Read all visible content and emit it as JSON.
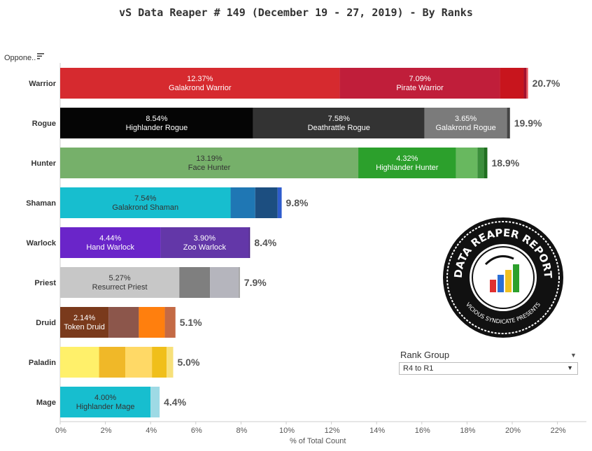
{
  "title": "vS Data Reaper #  149 (December 19 - 27, 2019) - By Ranks",
  "filter": {
    "label": "Oppone..",
    "sort_icon": "sort-icon"
  },
  "rank_group": {
    "label": "Rank Group",
    "value": "R4 to R1"
  },
  "logo": {
    "text_top": "DATA REAPER REPORT",
    "text_bottom": "VICIOUS SYNDICATE PRESENTS"
  },
  "chart_data": {
    "type": "bar",
    "orientation": "horizontal",
    "stacked": true,
    "title": "vS Data Reaper #  149 (December 19 - 27, 2019) - By Ranks",
    "xlabel": "% of Total Count",
    "xlim": [
      0,
      23
    ],
    "xticks": [
      "0%",
      "2%",
      "4%",
      "6%",
      "8%",
      "10%",
      "12%",
      "14%",
      "16%",
      "18%",
      "20%",
      "22%"
    ],
    "categories": [
      "Warrior",
      "Rogue",
      "Hunter",
      "Shaman",
      "Warlock",
      "Priest",
      "Druid",
      "Paladin",
      "Mage"
    ],
    "totals": [
      "20.7%",
      "19.9%",
      "18.9%",
      "9.8%",
      "8.4%",
      "7.9%",
      "5.1%",
      "5.0%",
      "4.4%"
    ],
    "bars": [
      {
        "class": "Warrior",
        "segments": [
          {
            "value": 12.37,
            "label": "12.37%",
            "name": "Galakrond Warrior",
            "color": "#d62a2f"
          },
          {
            "value": 7.09,
            "label": "7.09%",
            "name": "Pirate Warrior",
            "color": "#c01e3a"
          },
          {
            "value": 1.05,
            "color": "#c8151d"
          },
          {
            "value": 0.12,
            "color": "#a3112e"
          },
          {
            "value": 0.07,
            "color": "#e8575c"
          }
        ]
      },
      {
        "class": "Rogue",
        "segments": [
          {
            "value": 8.54,
            "label": "8.54%",
            "name": "Highlander Rogue",
            "color": "#050505"
          },
          {
            "value": 7.58,
            "label": "7.58%",
            "name": "Deathrattle Rogue",
            "color": "#333333"
          },
          {
            "value": 3.65,
            "label": "3.65%",
            "name": "Galakrond Rogue",
            "color": "#7b7b7b"
          },
          {
            "value": 0.13,
            "color": "#444444"
          }
        ]
      },
      {
        "class": "Hunter",
        "segments": [
          {
            "value": 13.19,
            "label": "13.19%",
            "name": "Face Hunter",
            "color": "#76b06a",
            "dark": true
          },
          {
            "value": 4.32,
            "label": "4.32%",
            "name": "Highlander Hunter",
            "color": "#2ca02c"
          },
          {
            "value": 0.95,
            "color": "#68b85f"
          },
          {
            "value": 0.28,
            "color": "#3b8f3b"
          },
          {
            "value": 0.16,
            "color": "#1f6f1f"
          }
        ]
      },
      {
        "class": "Shaman",
        "segments": [
          {
            "value": 7.54,
            "label": "7.54%",
            "name": "Galakrond Shaman",
            "color": "#17becf",
            "dark": true
          },
          {
            "value": 1.09,
            "color": "#1f77b4"
          },
          {
            "value": 0.99,
            "color": "#1c4e80"
          },
          {
            "value": 0.18,
            "color": "#2e5ccc"
          }
        ]
      },
      {
        "class": "Warlock",
        "segments": [
          {
            "value": 4.44,
            "label": "4.44%",
            "name": "Hand Warlock",
            "color": "#6a25c9"
          },
          {
            "value": 3.9,
            "label": "3.90%",
            "name": "Zoo Warlock",
            "color": "#6337a8"
          },
          {
            "value": 0.06,
            "color": "#4a2088"
          }
        ]
      },
      {
        "class": "Priest",
        "segments": [
          {
            "value": 5.27,
            "label": "5.27%",
            "name": "Resurrect Priest",
            "color": "#c7c7c7",
            "dark": true
          },
          {
            "value": 1.36,
            "color": "#7f7f7f"
          },
          {
            "value": 1.27,
            "color": "#b5b5bd"
          },
          {
            "value": 0.05,
            "color": "#999999"
          }
        ]
      },
      {
        "class": "Druid",
        "segments": [
          {
            "value": 2.14,
            "label": "2.14%",
            "name": "Token Druid",
            "color": "#7a3a1c"
          },
          {
            "value": 1.34,
            "color": "#8c564b"
          },
          {
            "value": 1.15,
            "color": "#ff7f0e"
          },
          {
            "value": 0.47,
            "color": "#c46a45"
          }
        ]
      },
      {
        "class": "Paladin",
        "segments": [
          {
            "value": 1.72,
            "color": "#fff06a"
          },
          {
            "value": 1.16,
            "color": "#f0b828"
          },
          {
            "value": 1.18,
            "color": "#ffd966"
          },
          {
            "value": 0.65,
            "color": "#f0bf1a"
          },
          {
            "value": 0.29,
            "color": "#f7e07a"
          }
        ]
      },
      {
        "class": "Mage",
        "segments": [
          {
            "value": 4.0,
            "label": "4.00%",
            "name": "Highlander Mage",
            "color": "#17becf",
            "dark": true
          },
          {
            "value": 0.4,
            "color": "#9edae5"
          }
        ]
      }
    ]
  }
}
